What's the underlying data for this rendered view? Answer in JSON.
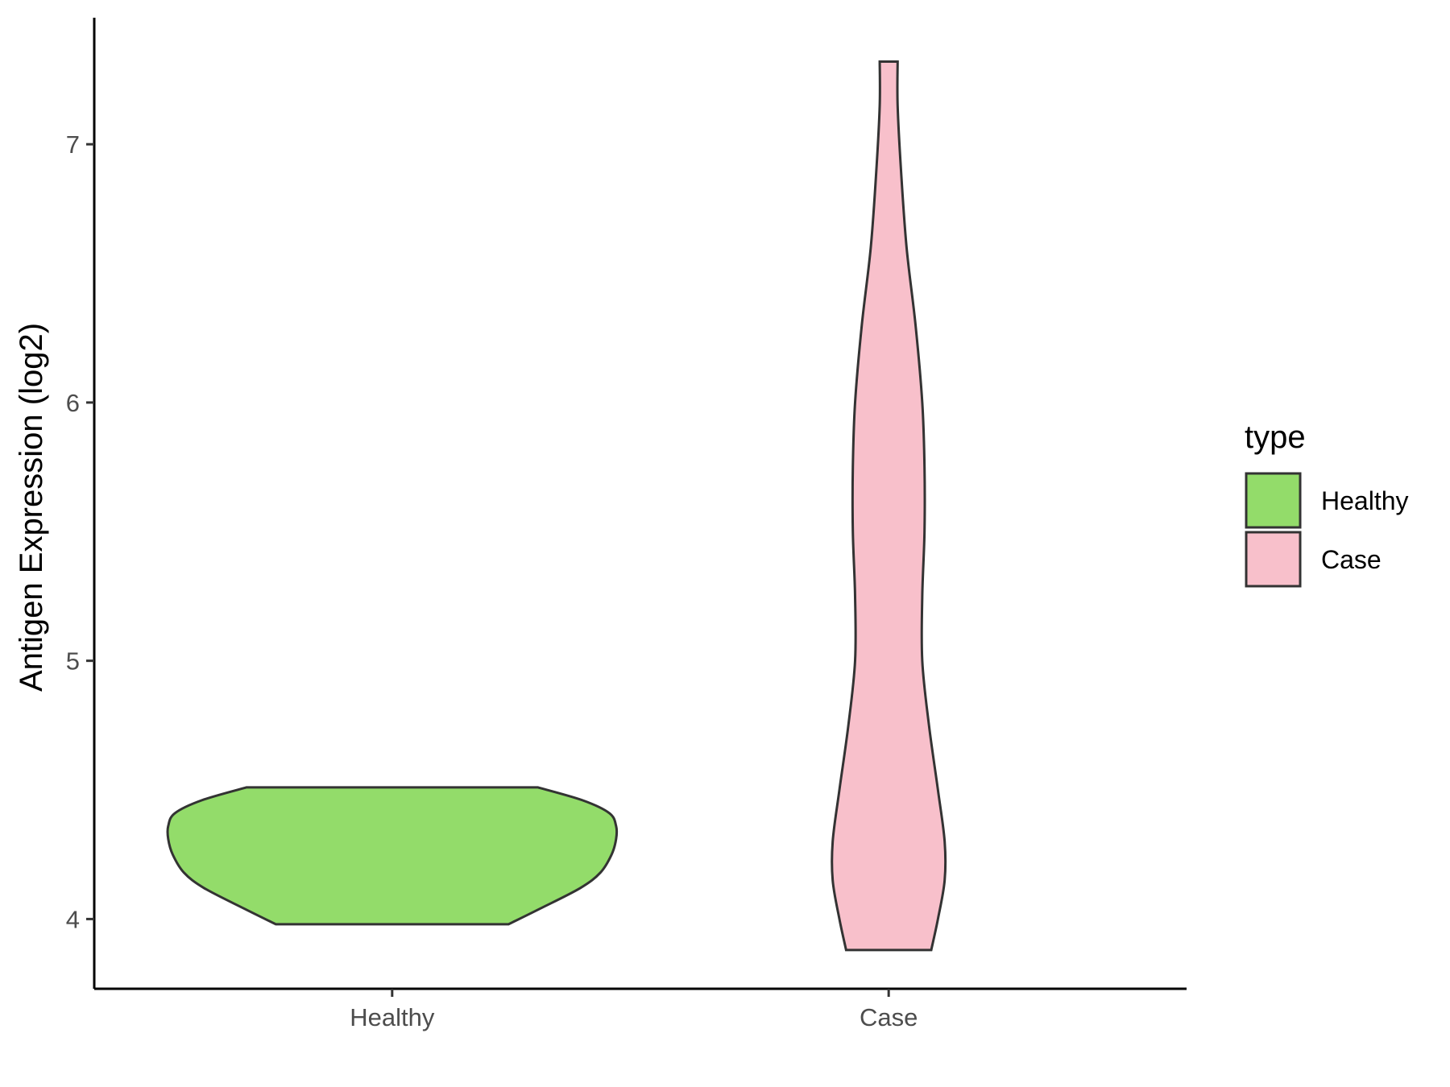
{
  "chart_data": {
    "type": "violin",
    "title": "",
    "xlabel": "",
    "ylabel": "Antigen Expression (log2)",
    "categories": [
      "Healthy",
      "Case"
    ],
    "y_ticks": [
      4,
      5,
      6,
      7
    ],
    "ylim": [
      3.73,
      7.49
    ],
    "grid": false,
    "legend": {
      "title": "type",
      "position": "right",
      "entries": [
        {
          "label": "Healthy",
          "color": "#93DC6A"
        },
        {
          "label": "Case",
          "color": "#F8C0CB"
        }
      ]
    },
    "series": [
      {
        "name": "Healthy",
        "color": "#93DC6A",
        "y_range": [
          3.98,
          4.51
        ],
        "density_profile": [
          {
            "y": 3.98,
            "w": 0.52
          },
          {
            "y": 4.04,
            "w": 0.66
          },
          {
            "y": 4.12,
            "w": 0.84
          },
          {
            "y": 4.18,
            "w": 0.93
          },
          {
            "y": 4.25,
            "w": 0.98
          },
          {
            "y": 4.31,
            "w": 1.0
          },
          {
            "y": 4.36,
            "w": 1.0
          },
          {
            "y": 4.41,
            "w": 0.97
          },
          {
            "y": 4.46,
            "w": 0.85
          },
          {
            "y": 4.51,
            "w": 0.65
          }
        ]
      },
      {
        "name": "Case",
        "color": "#F8C0CB",
        "y_range": [
          3.88,
          7.32
        ],
        "density_profile": [
          {
            "y": 3.88,
            "w": 0.19
          },
          {
            "y": 4.0,
            "w": 0.22
          },
          {
            "y": 4.15,
            "w": 0.25
          },
          {
            "y": 4.3,
            "w": 0.25
          },
          {
            "y": 4.5,
            "w": 0.22
          },
          {
            "y": 4.75,
            "w": 0.18
          },
          {
            "y": 5.0,
            "w": 0.15
          },
          {
            "y": 5.25,
            "w": 0.15
          },
          {
            "y": 5.5,
            "w": 0.16
          },
          {
            "y": 5.75,
            "w": 0.16
          },
          {
            "y": 6.0,
            "w": 0.15
          },
          {
            "y": 6.3,
            "w": 0.12
          },
          {
            "y": 6.6,
            "w": 0.08
          },
          {
            "y": 6.9,
            "w": 0.055
          },
          {
            "y": 7.15,
            "w": 0.04
          },
          {
            "y": 7.32,
            "w": 0.04
          }
        ]
      }
    ]
  }
}
